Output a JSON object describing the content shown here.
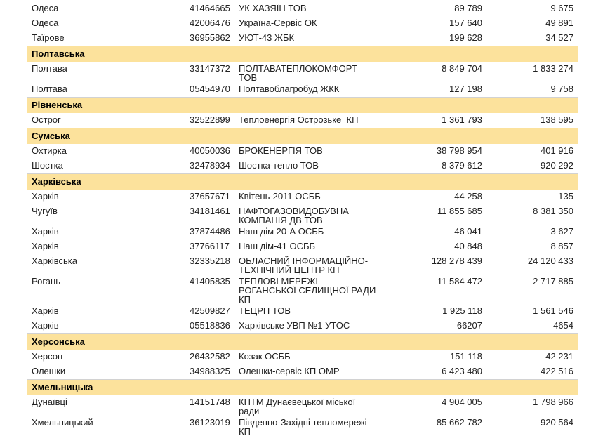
{
  "colors": {
    "band_bg": "#FCE29C",
    "text": "#212121",
    "band_border": "#d2d2d2",
    "page_bg": "#ffffff"
  },
  "rows": [
    {
      "type": "data",
      "city": "Одеса",
      "code": "41464665",
      "name": "УК ХАЗЯЇН ТОВ",
      "v1": "89 789",
      "v2": "9 675"
    },
    {
      "type": "data",
      "city": "Одеса",
      "code": "42006476",
      "name": "Україна-Сервіс ОК",
      "v1": "157 640",
      "v2": "49 891"
    },
    {
      "type": "data",
      "city": "Таїрове",
      "code": "36955862",
      "name": "УЮТ-43 ЖБК",
      "v1": "199 628",
      "v2": "34 527"
    },
    {
      "type": "band",
      "label": "Полтавська"
    },
    {
      "type": "data",
      "city": "Полтава",
      "code": "33147372",
      "name": "ПОЛТАВАТЕПЛОКОМФОРТ\nТОВ",
      "v1": "8 849 704",
      "v2": "1 833 274"
    },
    {
      "type": "data",
      "city": "Полтава",
      "code": "05454970",
      "name": "Полтавоблагробуд ЖКК",
      "v1": "127 198",
      "v2": "9 758"
    },
    {
      "type": "band",
      "label": "Рівненська"
    },
    {
      "type": "data",
      "city": "Острог",
      "code": "32522899",
      "name": "Теплоенергія Острозьке  КП",
      "v1": "1 361 793",
      "v2": "138 595"
    },
    {
      "type": "band",
      "label": "Сумська"
    },
    {
      "type": "data",
      "city": "Охтирка",
      "code": "40050036",
      "name": "БРОКЕНЕРГІЯ ТОВ",
      "v1": "38 798 954",
      "v2": "401 916"
    },
    {
      "type": "data",
      "city": "Шостка",
      "code": "32478934",
      "name": "Шостка-тепло ТОВ",
      "v1": "8 379 612",
      "v2": "920 292"
    },
    {
      "type": "band",
      "label": "Харківська"
    },
    {
      "type": "data",
      "city": "Харків",
      "code": "37657671",
      "name": "Квітень-2011 ОСББ",
      "v1": "44 258",
      "v2": "135"
    },
    {
      "type": "data",
      "city": "Чугуїв",
      "code": "34181461",
      "name": "НАФТОГАЗОВИДОБУВНА\nКОМПАНІЯ ДВ ТОВ",
      "v1": "11 855 685",
      "v2": "8 381 350"
    },
    {
      "type": "data",
      "city": "Харків",
      "code": "37874486",
      "name": "Наш дім 20-А ОСББ",
      "v1": "46 041",
      "v2": "3 627"
    },
    {
      "type": "data",
      "city": "Харків",
      "code": "37766117",
      "name": "Наш дім-41 ОСББ",
      "v1": "40 848",
      "v2": "8 857"
    },
    {
      "type": "data",
      "city": "Харківська",
      "code": "32335218",
      "name": "ОБЛАСНИЙ ІНФОРМАЦІЙНО-\nТЕХНІЧНИЙ ЦЕНТР КП",
      "v1": "128 278 439",
      "v2": "24 120 433"
    },
    {
      "type": "data",
      "city": "Рогань",
      "code": "41405835",
      "name": "ТЕПЛОВІ МЕРЕЖІ\nРОГАНСЬКОЇ СЕЛИЩНОЇ РАДИ\nКП",
      "v1": "11 584 472",
      "v2": "2 717 885"
    },
    {
      "type": "data",
      "city": "Харків",
      "code": "42509827",
      "name": "ТЕЦРП ТОВ",
      "v1": "1 925 118",
      "v2": "1 561 546"
    },
    {
      "type": "data",
      "city": "Харків",
      "code": "05518836",
      "name": "Харківське УВП №1 УТОС",
      "v1": "66207",
      "v2": "4654"
    },
    {
      "type": "band",
      "label": "Херсонська"
    },
    {
      "type": "data",
      "city": "Херсон",
      "code": "26432582",
      "name": "Козак ОСББ",
      "v1": "151 118",
      "v2": "42 231"
    },
    {
      "type": "data",
      "city": "Олешки",
      "code": "34988325",
      "name": "Олешки-сервіс КП ОМР",
      "v1": "6 423 480",
      "v2": "422 516"
    },
    {
      "type": "band",
      "label": "Хмельницька"
    },
    {
      "type": "data",
      "city": "Дунаївці",
      "code": "14151748",
      "name": "КПТМ Дунаєвецької міської\nради",
      "v1": "4 904 005",
      "v2": "1 798 966"
    },
    {
      "type": "data",
      "city": "Хмельницький",
      "code": "36123019",
      "name": "Південно-Західні тепломережі\nКП",
      "v1": "85 662 782",
      "v2": "920 564"
    }
  ]
}
